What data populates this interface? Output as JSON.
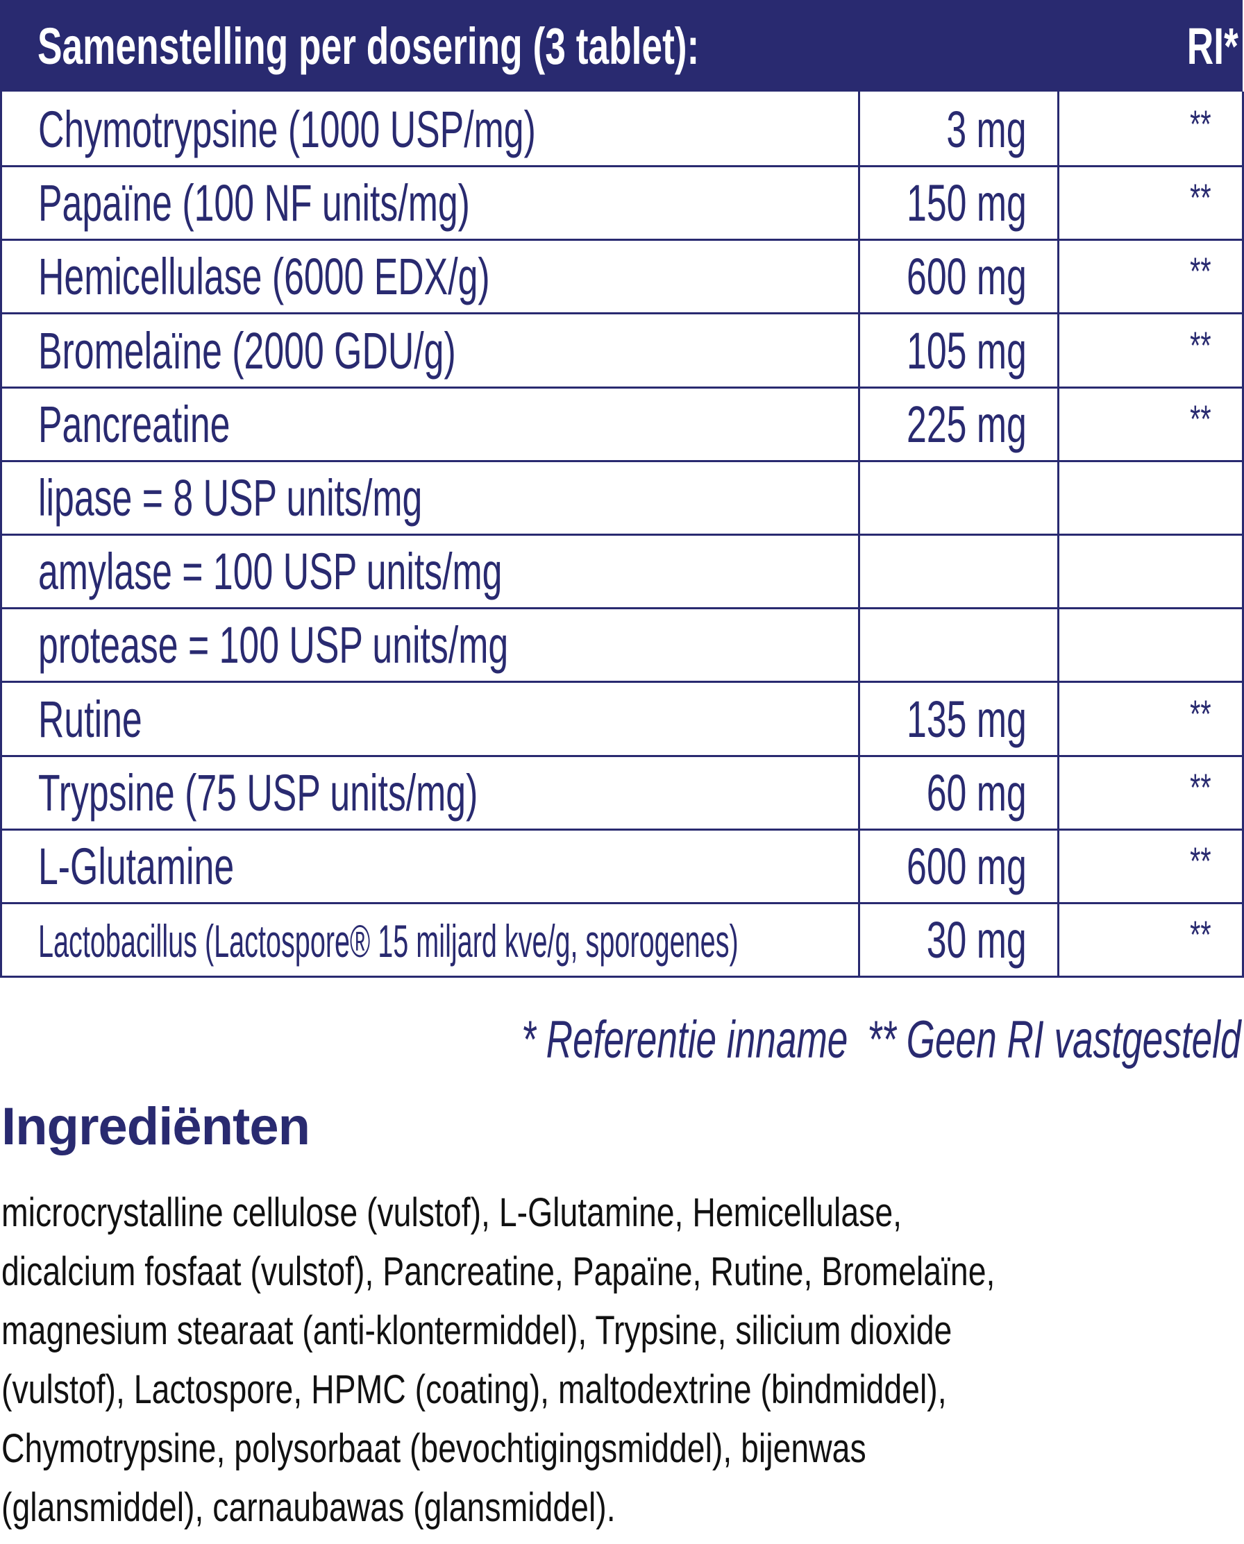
{
  "table": {
    "header": {
      "title": "Samenstelling per dosering (3 tablet):",
      "ri": "RI*"
    },
    "rows": [
      {
        "name": "Chymotrypsine (1000 USP/mg)",
        "amount": "3 mg",
        "ri": "**"
      },
      {
        "name": "Papaïne (100 NF units/mg)",
        "amount": "150 mg",
        "ri": "**"
      },
      {
        "name": "Hemicellulase (6000 EDX/g)",
        "amount": "600 mg",
        "ri": "**"
      },
      {
        "name": "Bromelaïne (2000 GDU/g)",
        "amount": "105 mg",
        "ri": "**"
      },
      {
        "name": "Pancreatine",
        "amount": "225 mg",
        "ri": "**"
      },
      {
        "name": "lipase = 8 USP units/mg",
        "amount": "",
        "ri": ""
      },
      {
        "name": "amylase = 100 USP units/mg",
        "amount": "",
        "ri": ""
      },
      {
        "name": "protease = 100 USP units/mg",
        "amount": "",
        "ri": ""
      },
      {
        "name": "Rutine",
        "amount": "135 mg",
        "ri": "**"
      },
      {
        "name": "Trypsine (75 USP units/mg)",
        "amount": "60 mg",
        "ri": "**"
      },
      {
        "name": "L-Glutamine",
        "amount": "600 mg",
        "ri": "**"
      },
      {
        "name": "Lactobacillus (Lactospore® 15 miljard kve/g, sporogenes)",
        "amount": "30 mg",
        "ri": "**"
      }
    ]
  },
  "footnotes": {
    "ri": "* Referentie inname",
    "no_ri": "** Geen RI vastgesteld"
  },
  "ingredients": {
    "title": "Ingrediënten",
    "lines": [
      "microcrystalline cellulose (vulstof), L-Glutamine, Hemicellulase,",
      "dicalcium fosfaat (vulstof), Pancreatine, Papaïne, Rutine, Bromelaïne,",
      "magnesium stearaat (anti-klontermiddel), Trypsine, silicium dioxide",
      "(vulstof), Lactospore, HPMC (coating), maltodextrine (bindmiddel),",
      "Chymotrypsine, polysorbaat (bevochtigingsmiddel), bijenwas",
      "(glansmiddel), carnaubawas (glansmiddel)."
    ]
  },
  "colors": {
    "brand": "#292a70",
    "text": "#111111"
  }
}
